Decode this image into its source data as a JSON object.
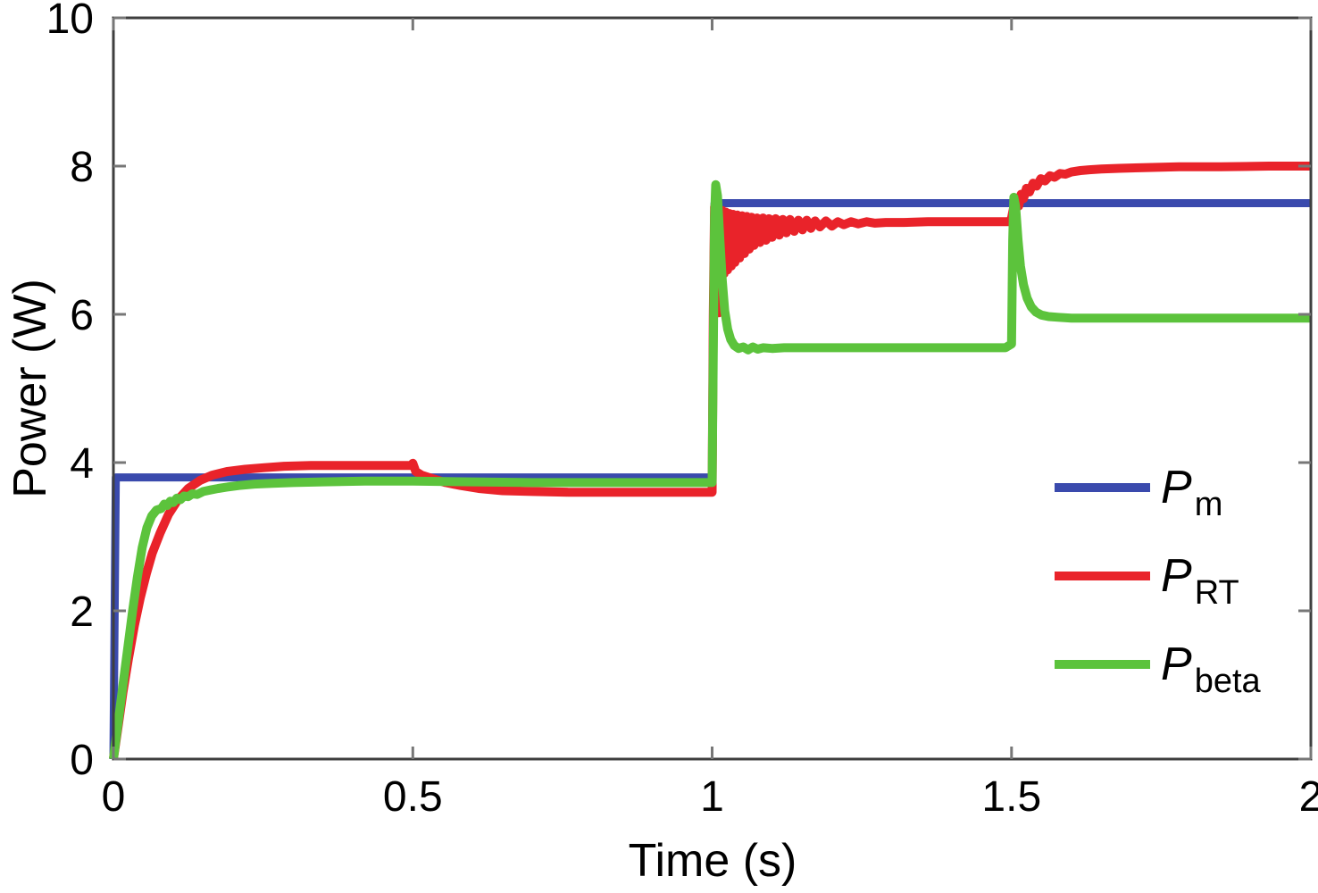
{
  "chart_data": {
    "type": "line",
    "title": "",
    "xlabel": "Time (s)",
    "ylabel": "Power (W)",
    "xlim": [
      0,
      2
    ],
    "ylim": [
      0,
      10
    ],
    "xticks": [
      0,
      0.5,
      1,
      1.5,
      2
    ],
    "xtick_labels": [
      "0",
      "0.5",
      "1",
      "1.5",
      "2"
    ],
    "yticks": [
      0,
      2,
      4,
      6,
      8,
      10
    ],
    "ytick_labels": [
      "0",
      "2",
      "4",
      "6",
      "8",
      "10"
    ],
    "grid": false,
    "axis_color": "#3f3f3f",
    "tick_color": "#777777",
    "background": "#ffffff",
    "series": [
      {
        "name": "Pm",
        "color": "#3a4aad",
        "width": 9,
        "points": [
          [
            0,
            0
          ],
          [
            0.004,
            3.8
          ],
          [
            0.25,
            3.8
          ],
          [
            0.5,
            3.8
          ],
          [
            0.75,
            3.8
          ],
          [
            1.0,
            3.8
          ],
          [
            1.004,
            7.5
          ],
          [
            1.25,
            7.5
          ],
          [
            1.5,
            7.5
          ],
          [
            1.75,
            7.5
          ],
          [
            2,
            7.5
          ]
        ]
      },
      {
        "name": "PRT",
        "color": "#e9232a",
        "width": 10,
        "points": [
          [
            0,
            0
          ],
          [
            0.008,
            0.45
          ],
          [
            0.016,
            0.9
          ],
          [
            0.025,
            1.35
          ],
          [
            0.035,
            1.8
          ],
          [
            0.045,
            2.18
          ],
          [
            0.055,
            2.5
          ],
          [
            0.065,
            2.78
          ],
          [
            0.078,
            3.05
          ],
          [
            0.092,
            3.3
          ],
          [
            0.108,
            3.5
          ],
          [
            0.125,
            3.65
          ],
          [
            0.145,
            3.76
          ],
          [
            0.165,
            3.83
          ],
          [
            0.19,
            3.88
          ],
          [
            0.22,
            3.91
          ],
          [
            0.25,
            3.93
          ],
          [
            0.285,
            3.95
          ],
          [
            0.33,
            3.96
          ],
          [
            0.38,
            3.96
          ],
          [
            0.43,
            3.96
          ],
          [
            0.48,
            3.96
          ],
          [
            0.497,
            3.96
          ],
          [
            0.5,
            3.99
          ],
          [
            0.505,
            3.88
          ],
          [
            0.515,
            3.83
          ],
          [
            0.53,
            3.79
          ],
          [
            0.555,
            3.73
          ],
          [
            0.58,
            3.69
          ],
          [
            0.61,
            3.65
          ],
          [
            0.65,
            3.62
          ],
          [
            0.7,
            3.61
          ],
          [
            0.76,
            3.6
          ],
          [
            0.85,
            3.6
          ],
          [
            0.95,
            3.6
          ],
          [
            1.0,
            3.6
          ],
          [
            1.002,
            6.0
          ],
          [
            1.004,
            7.45
          ],
          [
            1.008,
            6.7
          ],
          [
            1.011,
            6.02
          ],
          [
            1.014,
            6.9
          ],
          [
            1.017,
            7.4
          ],
          [
            1.02,
            6.55
          ],
          [
            1.023,
            7.38
          ],
          [
            1.026,
            6.6
          ],
          [
            1.029,
            7.36
          ],
          [
            1.032,
            6.65
          ],
          [
            1.035,
            7.35
          ],
          [
            1.038,
            6.7
          ],
          [
            1.042,
            7.34
          ],
          [
            1.046,
            6.76
          ],
          [
            1.05,
            7.33
          ],
          [
            1.054,
            6.82
          ],
          [
            1.058,
            7.32
          ],
          [
            1.062,
            6.88
          ],
          [
            1.066,
            7.31
          ],
          [
            1.07,
            6.93
          ],
          [
            1.075,
            7.3
          ],
          [
            1.08,
            6.97
          ],
          [
            1.085,
            7.3
          ],
          [
            1.09,
            7.0
          ],
          [
            1.095,
            7.29
          ],
          [
            1.1,
            7.04
          ],
          [
            1.106,
            7.29
          ],
          [
            1.112,
            7.07
          ],
          [
            1.118,
            7.28
          ],
          [
            1.124,
            7.1
          ],
          [
            1.13,
            7.28
          ],
          [
            1.137,
            7.12
          ],
          [
            1.144,
            7.27
          ],
          [
            1.151,
            7.14
          ],
          [
            1.158,
            7.27
          ],
          [
            1.165,
            7.16
          ],
          [
            1.172,
            7.26
          ],
          [
            1.18,
            7.18
          ],
          [
            1.19,
            7.26
          ],
          [
            1.2,
            7.19
          ],
          [
            1.21,
            7.25
          ],
          [
            1.22,
            7.21
          ],
          [
            1.232,
            7.25
          ],
          [
            1.244,
            7.22
          ],
          [
            1.258,
            7.25
          ],
          [
            1.272,
            7.23
          ],
          [
            1.29,
            7.24
          ],
          [
            1.32,
            7.24
          ],
          [
            1.36,
            7.25
          ],
          [
            1.4,
            7.25
          ],
          [
            1.45,
            7.25
          ],
          [
            1.497,
            7.25
          ],
          [
            1.5,
            7.3
          ],
          [
            1.503,
            7.42
          ],
          [
            1.506,
            7.36
          ],
          [
            1.509,
            7.52
          ],
          [
            1.512,
            7.46
          ],
          [
            1.516,
            7.62
          ],
          [
            1.52,
            7.56
          ],
          [
            1.525,
            7.7
          ],
          [
            1.53,
            7.65
          ],
          [
            1.536,
            7.77
          ],
          [
            1.542,
            7.73
          ],
          [
            1.549,
            7.83
          ],
          [
            1.556,
            7.8
          ],
          [
            1.564,
            7.87
          ],
          [
            1.572,
            7.85
          ],
          [
            1.581,
            7.9
          ],
          [
            1.59,
            7.89
          ],
          [
            1.6,
            7.92
          ],
          [
            1.615,
            7.94
          ],
          [
            1.63,
            7.95
          ],
          [
            1.65,
            7.96
          ],
          [
            1.68,
            7.97
          ],
          [
            1.72,
            7.98
          ],
          [
            1.78,
            7.99
          ],
          [
            1.85,
            7.99
          ],
          [
            1.93,
            8.0
          ],
          [
            2.0,
            8.0
          ]
        ]
      },
      {
        "name": "Pbeta",
        "color": "#5cc33c",
        "width": 10,
        "points": [
          [
            0,
            0
          ],
          [
            0.008,
            0.5
          ],
          [
            0.016,
            1.0
          ],
          [
            0.024,
            1.5
          ],
          [
            0.032,
            2.0
          ],
          [
            0.04,
            2.45
          ],
          [
            0.048,
            2.85
          ],
          [
            0.056,
            3.12
          ],
          [
            0.064,
            3.28
          ],
          [
            0.072,
            3.36
          ],
          [
            0.08,
            3.38
          ],
          [
            0.085,
            3.44
          ],
          [
            0.09,
            3.42
          ],
          [
            0.095,
            3.48
          ],
          [
            0.1,
            3.46
          ],
          [
            0.106,
            3.52
          ],
          [
            0.112,
            3.5
          ],
          [
            0.118,
            3.55
          ],
          [
            0.125,
            3.54
          ],
          [
            0.132,
            3.58
          ],
          [
            0.14,
            3.57
          ],
          [
            0.15,
            3.61
          ],
          [
            0.162,
            3.63
          ],
          [
            0.175,
            3.65
          ],
          [
            0.19,
            3.67
          ],
          [
            0.21,
            3.69
          ],
          [
            0.235,
            3.71
          ],
          [
            0.265,
            3.72
          ],
          [
            0.3,
            3.73
          ],
          [
            0.35,
            3.74
          ],
          [
            0.42,
            3.75
          ],
          [
            0.5,
            3.75
          ],
          [
            0.6,
            3.74
          ],
          [
            0.7,
            3.73
          ],
          [
            0.85,
            3.73
          ],
          [
            1.0,
            3.73
          ],
          [
            1.002,
            5.5
          ],
          [
            1.004,
            7.3
          ],
          [
            1.006,
            7.75
          ],
          [
            1.009,
            7.6
          ],
          [
            1.013,
            7.0
          ],
          [
            1.017,
            6.45
          ],
          [
            1.021,
            6.05
          ],
          [
            1.026,
            5.8
          ],
          [
            1.031,
            5.66
          ],
          [
            1.037,
            5.58
          ],
          [
            1.044,
            5.54
          ],
          [
            1.052,
            5.56
          ],
          [
            1.06,
            5.52
          ],
          [
            1.068,
            5.56
          ],
          [
            1.076,
            5.53
          ],
          [
            1.085,
            5.55
          ],
          [
            1.1,
            5.54
          ],
          [
            1.12,
            5.55
          ],
          [
            1.16,
            5.55
          ],
          [
            1.22,
            5.55
          ],
          [
            1.3,
            5.55
          ],
          [
            1.4,
            5.55
          ],
          [
            1.49,
            5.55
          ],
          [
            1.5,
            5.6
          ],
          [
            1.502,
            7.0
          ],
          [
            1.504,
            7.58
          ],
          [
            1.507,
            7.45
          ],
          [
            1.511,
            7.0
          ],
          [
            1.515,
            6.65
          ],
          [
            1.52,
            6.4
          ],
          [
            1.526,
            6.22
          ],
          [
            1.533,
            6.1
          ],
          [
            1.541,
            6.03
          ],
          [
            1.55,
            5.99
          ],
          [
            1.562,
            5.97
          ],
          [
            1.578,
            5.96
          ],
          [
            1.6,
            5.95
          ],
          [
            1.65,
            5.95
          ],
          [
            1.75,
            5.95
          ],
          [
            1.9,
            5.95
          ],
          [
            2.0,
            5.95
          ]
        ]
      }
    ],
    "legend": {
      "position": "right-middle",
      "border": "none",
      "items": [
        {
          "main": "P",
          "sub": "m",
          "color": "#3a4aad"
        },
        {
          "main": "P",
          "sub": "RT",
          "color": "#e9232a"
        },
        {
          "main": "P",
          "sub": "beta",
          "color": "#5cc33c"
        }
      ]
    }
  }
}
